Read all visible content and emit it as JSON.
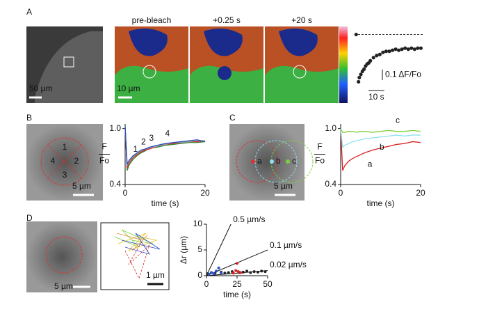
{
  "panel_labels": [
    "A",
    "B",
    "C",
    "D"
  ],
  "image_labels": {
    "a_scale": "50 µm",
    "a_heat_scale": "10 µm",
    "a_frames": [
      "pre-bleach",
      "+0.25 s",
      "+20 s"
    ],
    "b_scale": "5 µm",
    "b_regions": [
      "1",
      "2",
      "3",
      "4"
    ],
    "c_scale": "5 µm",
    "c_points": [
      "a",
      "b",
      "c"
    ],
    "d_scale": "5 µm",
    "d_track_scale": "1 µm"
  },
  "chart_data": [
    {
      "type": "scatter",
      "color": "#222222",
      "x": [
        -1,
        0.5,
        1,
        2,
        3,
        4,
        5,
        6,
        7,
        8,
        10,
        12,
        14,
        16,
        18,
        20,
        22,
        24,
        26,
        28,
        30,
        32,
        34,
        36,
        38,
        40
      ],
      "values": [
        1.0,
        0.55,
        0.59,
        0.62,
        0.65,
        0.67,
        0.7,
        0.72,
        0.73,
        0.75,
        0.78,
        0.8,
        0.81,
        0.83,
        0.84,
        0.84,
        0.85,
        0.86,
        0.85,
        0.86,
        0.87,
        0.86,
        0.87,
        0.86,
        0.87,
        0.87
      ],
      "xlim": [
        -2,
        42
      ],
      "ylim": [
        0.5,
        1.05
      ],
      "baseline": 1.0,
      "scale_y": {
        "value": 0.1,
        "label": "0.1 ΔF/Fo"
      },
      "scale_x": {
        "value": 10,
        "label": "10 s"
      }
    },
    {
      "type": "line",
      "x": [
        0,
        0.5,
        1,
        2,
        3,
        4,
        5,
        6,
        8,
        10,
        12,
        14,
        16,
        18,
        20
      ],
      "xlim": [
        0,
        20
      ],
      "ylim": [
        0.4,
        1.05
      ],
      "xticks": [
        0,
        20
      ],
      "yticks": [
        0.4,
        {
          "value": 1.0,
          "label": "1.0"
        }
      ],
      "xlabel": "time (s)",
      "ylabel": {
        "top": "F",
        "bottom": "Fo"
      },
      "series": [
        {
          "name": "1",
          "color": "#2e8b2e",
          "values": [
            1.02,
            0.55,
            0.61,
            0.67,
            0.71,
            0.74,
            0.76,
            0.79,
            0.8,
            0.82,
            0.83,
            0.84,
            0.85,
            0.85,
            0.86
          ]
        },
        {
          "name": "2",
          "color": "#d62020",
          "values": [
            1.0,
            0.58,
            0.63,
            0.69,
            0.72,
            0.75,
            0.77,
            0.78,
            0.81,
            0.83,
            0.84,
            0.85,
            0.86,
            0.86,
            0.87
          ]
        },
        {
          "name": "3",
          "color": "#999999",
          "values": [
            1.01,
            0.6,
            0.65,
            0.7,
            0.73,
            0.76,
            0.78,
            0.79,
            0.81,
            0.83,
            0.85,
            0.85,
            0.86,
            0.87,
            0.87
          ]
        },
        {
          "name": "4",
          "color": "#2a4fc0",
          "values": [
            1.03,
            0.62,
            0.66,
            0.71,
            0.74,
            0.77,
            0.78,
            0.8,
            0.82,
            0.84,
            0.85,
            0.86,
            0.87,
            0.88,
            0.86
          ]
        }
      ]
    },
    {
      "type": "line",
      "x": [
        0,
        0.5,
        1,
        2,
        3,
        4,
        5,
        6,
        8,
        10,
        12,
        14,
        16,
        18,
        20
      ],
      "xlim": [
        0,
        20
      ],
      "ylim": [
        0.4,
        1.05
      ],
      "xticks": [
        0,
        20
      ],
      "yticks": [
        0.4,
        {
          "value": 1.0,
          "label": "1.0"
        }
      ],
      "xlabel": "time (s)",
      "ylabel": {
        "top": "F",
        "bottom": "Fo"
      },
      "series": [
        {
          "name": "a",
          "color": "#d62020",
          "values": [
            1.0,
            0.55,
            0.6,
            0.65,
            0.68,
            0.7,
            0.72,
            0.74,
            0.77,
            0.79,
            0.81,
            0.83,
            0.84,
            0.86,
            0.85
          ]
        },
        {
          "name": "b",
          "color": "#8fe0f0",
          "values": [
            1.0,
            0.8,
            0.82,
            0.84,
            0.86,
            0.87,
            0.88,
            0.89,
            0.9,
            0.91,
            0.92,
            0.93,
            0.92,
            0.93,
            0.93
          ]
        },
        {
          "name": "c",
          "color": "#7ed03a",
          "values": [
            1.0,
            0.96,
            0.96,
            0.97,
            0.97,
            0.96,
            0.97,
            0.97,
            0.96,
            0.97,
            0.98,
            0.97,
            0.97,
            0.98,
            0.97
          ]
        }
      ]
    },
    {
      "type": "scatter",
      "xlim": [
        0,
        50
      ],
      "ylim": [
        0,
        10
      ],
      "xticks": [
        0,
        25,
        50
      ],
      "yticks": [
        0,
        5,
        10
      ],
      "xlabel": "time (s)",
      "ylabel": "Δr (µm)",
      "reference_lines": [
        {
          "label": "0.5 µm/s",
          "slope": 0.5
        },
        {
          "label": "0.1 µm/s",
          "slope": 0.1
        },
        {
          "label": "0.02 µm/s",
          "slope": 0.02
        }
      ],
      "series": [
        {
          "color": "#222222",
          "x": [
            1,
            4,
            7,
            12,
            15,
            18,
            21,
            27,
            30,
            33,
            36,
            39,
            42,
            45,
            48
          ],
          "values": [
            0.4,
            0.6,
            0.5,
            0.7,
            0.5,
            0.6,
            0.8,
            0.6,
            0.7,
            0.9,
            0.6,
            0.8,
            0.7,
            0.9,
            0.8
          ]
        },
        {
          "color": "#2a4fc0",
          "x": [
            2,
            4,
            6,
            8,
            10,
            12
          ],
          "values": [
            0.3,
            0.6,
            0.4,
            0.9,
            1.5,
            0.5
          ]
        },
        {
          "color": "#d62020",
          "x": [
            22,
            24,
            25,
            26,
            28
          ],
          "values": [
            0.5,
            1.0,
            2.4,
            0.8,
            0.6
          ]
        }
      ]
    }
  ]
}
